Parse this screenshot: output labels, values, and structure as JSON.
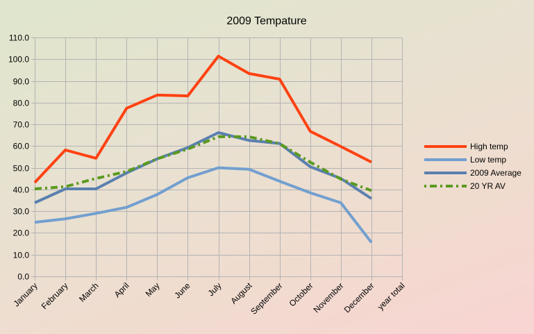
{
  "chart_data": {
    "type": "line",
    "title": "2009 Tempature",
    "xlabel": "",
    "ylabel": "",
    "categories": [
      "January",
      "February",
      "March",
      "April",
      "May",
      "June",
      "July",
      "August",
      "September",
      "October",
      "November",
      "December",
      "year total"
    ],
    "ylim": [
      0,
      110
    ],
    "yticks": [
      0,
      10,
      20,
      30,
      40,
      50,
      60,
      70,
      80,
      90,
      100,
      110
    ],
    "ytick_labels": [
      "0.0",
      "10.0",
      "20.0",
      "30.0",
      "40.0",
      "50.0",
      "60.0",
      "70.0",
      "80.0",
      "90.0",
      "100.0",
      "110.0"
    ],
    "grid": true,
    "legend_position": "right",
    "series": [
      {
        "name": "High temp",
        "color": "#ff4212",
        "style": "solid",
        "values": [
          43.2,
          58.2,
          54.4,
          77.4,
          83.5,
          83.1,
          101.4,
          93.4,
          90.8,
          66.8,
          59.8,
          52.6,
          null
        ]
      },
      {
        "name": "Low temp",
        "color": "#729fcf",
        "style": "solid",
        "values": [
          24.9,
          26.5,
          29.0,
          31.8,
          37.7,
          45.4,
          50.0,
          49.3,
          43.8,
          38.5,
          33.9,
          15.6,
          null
        ]
      },
      {
        "name": "2009 Average",
        "color": "#5b80b0",
        "style": "solid",
        "values": [
          33.9,
          40.3,
          40.3,
          47.6,
          54.1,
          59.3,
          66.2,
          62.6,
          61.2,
          50.5,
          45.1,
          35.8,
          null
        ]
      },
      {
        "name": "20 YR AV",
        "color": "#5a9a1f",
        "style": "dash-dot",
        "values": [
          40.3,
          41.3,
          45.1,
          48.3,
          54.1,
          58.6,
          64.3,
          64.3,
          61.1,
          52.6,
          44.8,
          39.5,
          null
        ]
      }
    ]
  }
}
